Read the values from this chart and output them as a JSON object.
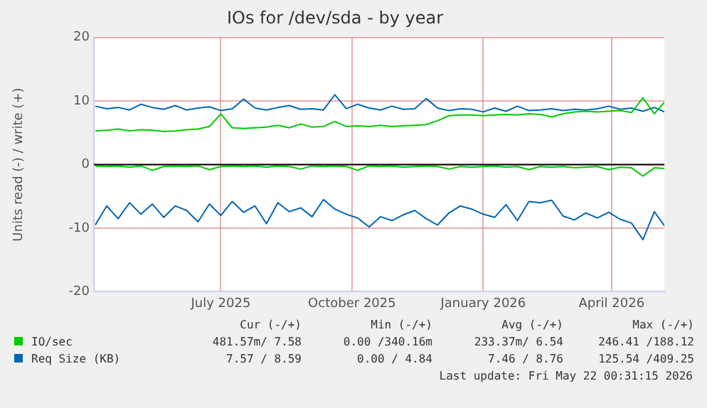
{
  "chart_data": {
    "type": "line",
    "title": "IOs for /dev/sda - by year",
    "ylabel": "Units read (-) / write (+)",
    "x": [
      "2025-04-18",
      "2025-04-26",
      "2025-05-04",
      "2025-05-12",
      "2025-05-20",
      "2025-05-28",
      "2025-06-05",
      "2025-06-13",
      "2025-06-21",
      "2025-06-29",
      "2025-07-07",
      "2025-07-15",
      "2025-07-23",
      "2025-07-31",
      "2025-08-08",
      "2025-08-16",
      "2025-08-24",
      "2025-09-01",
      "2025-09-09",
      "2025-09-17",
      "2025-09-25",
      "2025-10-03",
      "2025-10-11",
      "2025-10-19",
      "2025-10-27",
      "2025-11-04",
      "2025-11-12",
      "2025-11-20",
      "2025-11-28",
      "2025-12-06",
      "2025-12-14",
      "2025-12-22",
      "2025-12-30",
      "2026-01-07",
      "2026-01-15",
      "2026-01-23",
      "2026-01-31",
      "2026-02-08",
      "2026-02-16",
      "2026-02-24",
      "2026-03-04",
      "2026-03-12",
      "2026-03-20",
      "2026-03-28",
      "2026-04-05",
      "2026-04-13",
      "2026-04-21",
      "2026-04-29",
      "2026-05-07",
      "2026-05-15",
      "2026-05-22"
    ],
    "series": [
      {
        "color": "#00cc00",
        "values": [
          -0.2,
          -0.3,
          -0.2,
          -0.4,
          -0.2,
          -0.9,
          -0.3,
          -0.2,
          -0.3,
          -0.2,
          -0.8,
          -0.3,
          -0.2,
          -0.3,
          -0.2,
          -0.4,
          -0.2,
          -0.3,
          -0.7,
          -0.2,
          -0.3,
          -0.2,
          -0.3,
          -0.9,
          -0.2,
          -0.3,
          -0.2,
          -0.4,
          -0.3,
          -0.2,
          -0.3,
          -0.7,
          -0.3,
          -0.4,
          -0.3,
          -0.2,
          -0.4,
          -0.3,
          -0.8,
          -0.3,
          -0.4,
          -0.3,
          -0.5,
          -0.4,
          -0.3,
          -0.8,
          -0.4,
          -0.5,
          -1.8,
          -0.5,
          -0.6
        ]
      },
      {
        "color": "#0066b3",
        "values": [
          -9.5,
          -6.5,
          -8.5,
          -6.0,
          -7.8,
          -6.2,
          -8.3,
          -6.5,
          -7.2,
          -9.0,
          -6.2,
          -8.0,
          -5.8,
          -7.5,
          -6.5,
          -9.3,
          -6.0,
          -7.4,
          -6.8,
          -8.2,
          -5.5,
          -7.0,
          -7.8,
          -8.4,
          -9.8,
          -8.2,
          -8.8,
          -7.9,
          -7.2,
          -8.5,
          -9.5,
          -7.6,
          -6.5,
          -7.0,
          -7.8,
          -8.3,
          -6.3,
          -8.8,
          -5.8,
          -6.0,
          -5.6,
          -8.1,
          -8.7,
          -7.6,
          -8.4,
          -7.5,
          -8.6,
          -9.2,
          -11.8,
          -7.4,
          -9.6
        ]
      },
      {
        "name": "IO/sec",
        "color": "#00cc00",
        "values": [
          5.3,
          5.4,
          5.6,
          5.3,
          5.5,
          5.4,
          5.2,
          5.3,
          5.5,
          5.6,
          6.0,
          8.0,
          5.8,
          5.7,
          5.8,
          5.9,
          6.2,
          5.8,
          6.4,
          5.9,
          6.0,
          6.8,
          6.0,
          6.1,
          6.0,
          6.2,
          6.0,
          6.1,
          6.2,
          6.3,
          6.9,
          7.7,
          7.8,
          7.8,
          7.7,
          7.8,
          7.9,
          7.8,
          8.0,
          7.9,
          7.5,
          8.0,
          8.3,
          8.4,
          8.3,
          8.4,
          8.5,
          8.2,
          10.5,
          8.0,
          9.8
        ]
      },
      {
        "name": "Req Size (KB)",
        "color": "#0066b3",
        "values": [
          9.2,
          8.8,
          9.0,
          8.6,
          9.5,
          9.0,
          8.7,
          9.3,
          8.6,
          8.9,
          9.1,
          8.5,
          8.8,
          10.3,
          8.9,
          8.6,
          9.0,
          9.3,
          8.7,
          8.8,
          8.6,
          11.0,
          8.8,
          9.5,
          8.9,
          8.6,
          9.2,
          8.7,
          8.8,
          10.4,
          8.9,
          8.5,
          8.8,
          8.7,
          8.3,
          8.9,
          8.4,
          9.2,
          8.5,
          8.6,
          8.8,
          8.5,
          8.7,
          8.6,
          8.8,
          9.2,
          8.7,
          8.9,
          8.4,
          9.0,
          8.3
        ]
      }
    ],
    "xlim": [
      "2025-04-17",
      "2026-05-22"
    ],
    "xticks": [
      {
        "value": "2025-07-15",
        "label": "July 2025"
      },
      {
        "value": "2025-10-15",
        "label": "October 2025"
      },
      {
        "value": "2026-01-15",
        "label": "January 2026"
      },
      {
        "value": "2026-04-15",
        "label": "April 2026"
      }
    ],
    "ylim": [
      -20,
      20
    ],
    "yticks": [
      -20,
      -10,
      0,
      10,
      20
    ],
    "ref_lines": [
      {
        "axis": "y",
        "value": 0,
        "color": "#000000"
      }
    ],
    "grid": true,
    "legend": "bottom",
    "marker": "none",
    "line_style": "solid",
    "annotations": [
      "Cur (-/+)",
      "Min (-/+)",
      "Avg (-/+)",
      "Max (-/+)",
      "481.57m/ 7.58",
      "0.00 /340.16m",
      "233.37m/ 6.54",
      "246.41 /188.12",
      "7.57 / 8.59",
      "0.00 / 4.84",
      "7.46 / 8.76",
      "125.54 /409.25",
      "Last update: Fri May 22 00:31:15 2026"
    ]
  }
}
